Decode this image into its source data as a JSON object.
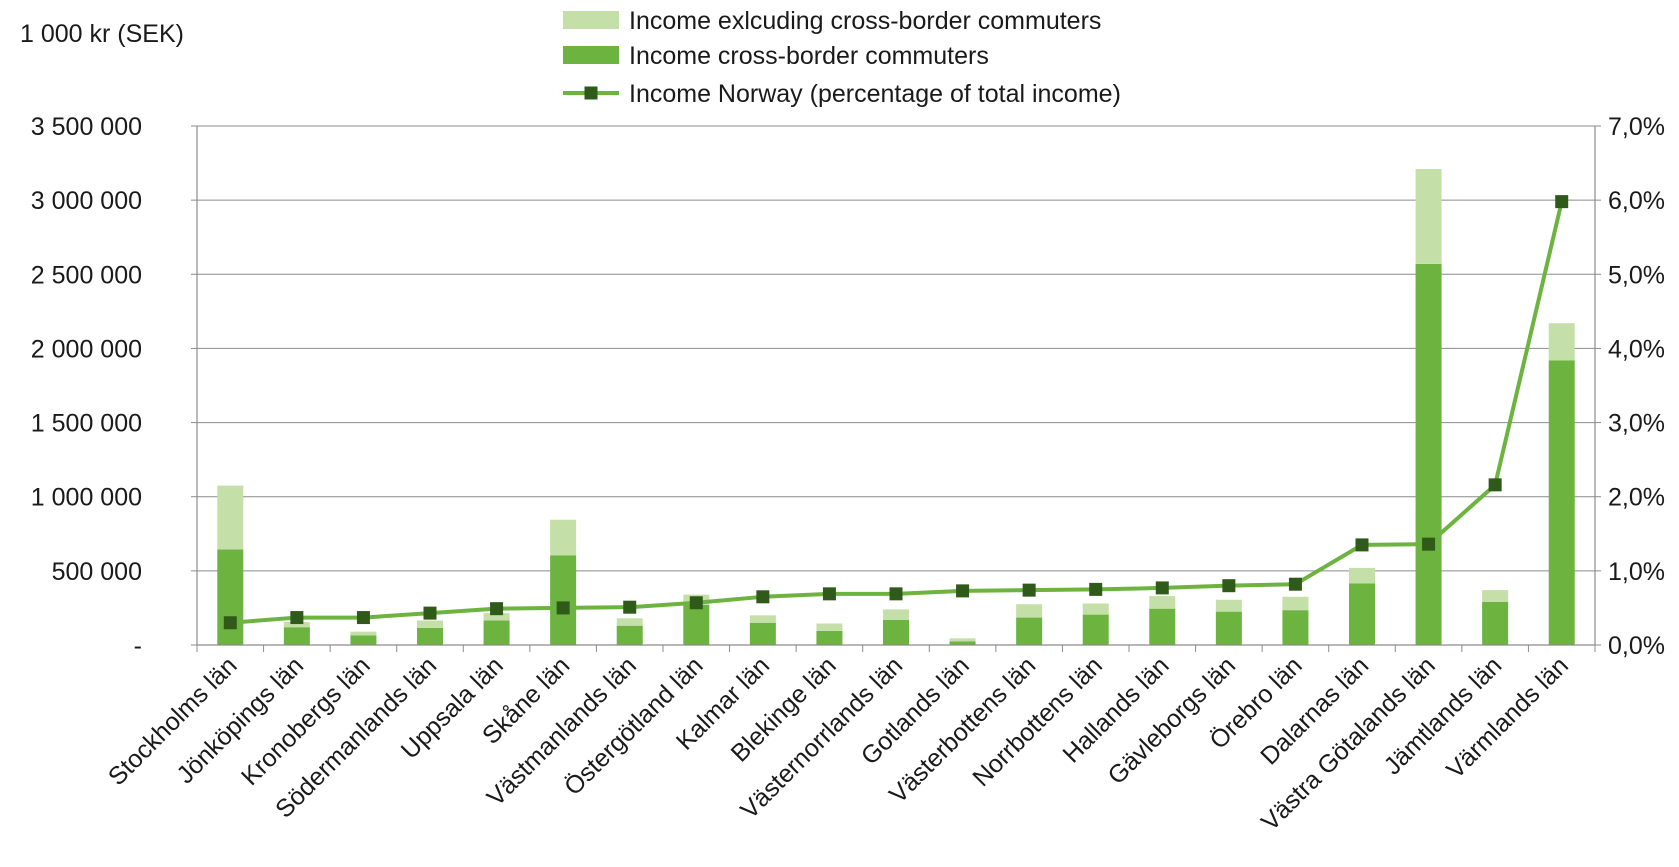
{
  "chart_data": {
    "type": "bar",
    "subtype": "stacked bar with line on secondary axis",
    "unit_label": "1 000 kr (SEK)",
    "categories": [
      "Stockholms län",
      "Jönköpings län",
      "Kronobergs län",
      "Södermanlands län",
      "Uppsala län",
      "Skåne län",
      "Västmanlands län",
      "Östergötland län",
      "Kalmar län",
      "Blekinge län",
      "Västernorrlands län",
      "Gotlands län",
      "Västerbottens län",
      "Norrbottens län",
      "Hallands län",
      "Gävleborgs län",
      "Örebro län",
      "Dalarnas län",
      "Västra Götalands län",
      "Jämtlands län",
      "Värmlands län"
    ],
    "series": [
      {
        "name": "Income cross-border commuters",
        "kind": "bar",
        "axis": "left",
        "color": "#6cb33f",
        "values": [
          645000,
          120000,
          65000,
          115000,
          165000,
          605000,
          130000,
          270000,
          150000,
          95000,
          170000,
          25000,
          185000,
          205000,
          245000,
          225000,
          235000,
          415000,
          2570000,
          290000,
          1920000
        ]
      },
      {
        "name": "Income exlcuding cross-border commuters",
        "kind": "bar",
        "axis": "left",
        "color": "#c4e0a8",
        "values": [
          430000,
          35000,
          25000,
          50000,
          50000,
          240000,
          50000,
          70000,
          50000,
          50000,
          70000,
          20000,
          90000,
          75000,
          85000,
          80000,
          90000,
          105000,
          640000,
          80000,
          250000
        ]
      },
      {
        "name": "Income Norway (percentage of total income)",
        "kind": "line",
        "axis": "right",
        "color": "#6cb33f",
        "marker_color": "#2f5a1a",
        "values": [
          0.3,
          0.37,
          0.37,
          0.43,
          0.49,
          0.5,
          0.51,
          0.57,
          0.65,
          0.69,
          0.69,
          0.73,
          0.74,
          0.75,
          0.77,
          0.8,
          0.82,
          1.35,
          1.36,
          2.16,
          5.98
        ]
      }
    ],
    "left_axis": {
      "ylim": [
        0,
        3500000
      ],
      "ticks": [
        0,
        500000,
        1000000,
        1500000,
        2000000,
        2500000,
        3000000,
        3500000
      ],
      "tick_labels": [
        "-",
        "500 000",
        "1 000 000",
        "1 500 000",
        "2 000 000",
        "2 500 000",
        "3 000 000",
        "3 500 000"
      ]
    },
    "right_axis": {
      "ylim": [
        0,
        7
      ],
      "ticks": [
        0,
        1,
        2,
        3,
        4,
        5,
        6,
        7
      ],
      "tick_labels": [
        "0,0%",
        "1,0%",
        "2,0%",
        "3,0%",
        "4,0%",
        "5,0%",
        "6,0%",
        "7,0%"
      ]
    },
    "legend": {
      "position": "top-center",
      "order": [
        "Income exlcuding cross-border commuters",
        "Income cross-border commuters",
        "Income Norway (percentage of total income)"
      ]
    },
    "grid": "horizontal",
    "grid_color": "#8c8c8c"
  }
}
